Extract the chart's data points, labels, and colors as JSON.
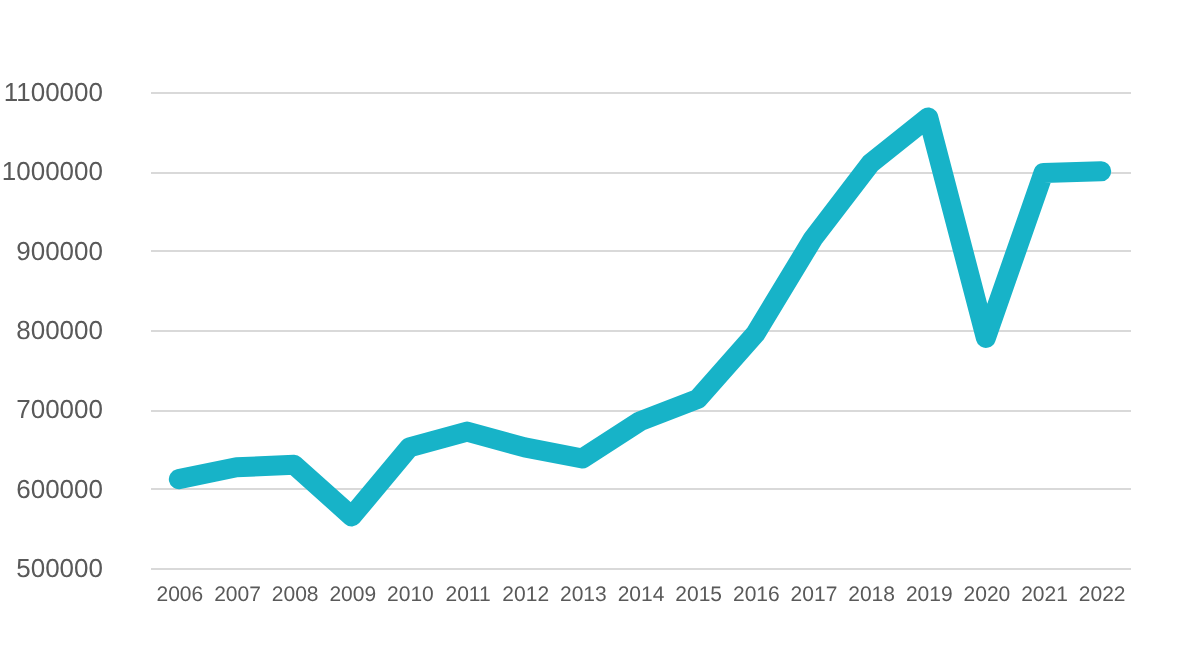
{
  "chart_data": {
    "type": "line",
    "categories": [
      "2006",
      "2007",
      "2008",
      "2009",
      "2010",
      "2011",
      "2012",
      "2013",
      "2014",
      "2015",
      "2016",
      "2017",
      "2018",
      "2019",
      "2020",
      "2021",
      "2022"
    ],
    "series": [
      {
        "color": "#17b3c8",
        "values": [
          612000,
          627000,
          630000,
          565000,
          652000,
          672000,
          652000,
          638000,
          685000,
          713000,
          795000,
          915000,
          1010000,
          1068000,
          790000,
          998000,
          1000000
        ]
      }
    ],
    "ylim": [
      500000,
      1100000
    ],
    "yticks": [
      500000,
      600000,
      700000,
      800000,
      900000,
      1000000,
      1100000
    ],
    "grid": "y",
    "marker": "none",
    "line_style": "solid"
  }
}
